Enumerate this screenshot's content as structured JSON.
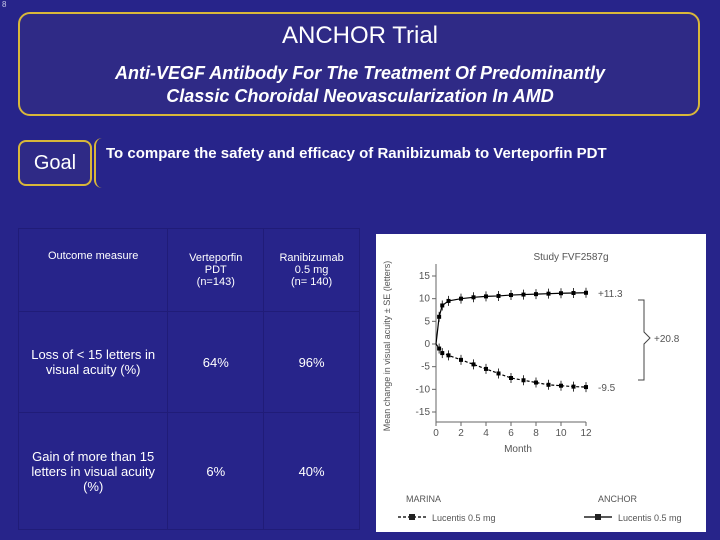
{
  "corner_mark": "8",
  "header": {
    "title": "ANCHOR Trial",
    "subtitle_line1": "Anti-VEGF Antibody For The Treatment Of Predominantly",
    "subtitle_line2": "Classic Choroidal Neovascularization In AMD"
  },
  "goal": {
    "label": "Goal",
    "text": "To compare the safety and efficacy of Ranibizumab to Verteporfin PDT"
  },
  "table": {
    "headers": [
      "Outcome measure",
      [
        "Verteporfin",
        "PDT",
        "(n=143)"
      ],
      [
        "Ranibizumab",
        "0.5 mg",
        "(n= 140)"
      ]
    ],
    "rows": [
      {
        "measure": [
          "Loss of  < 15 letters in",
          "visual acuity (%)"
        ],
        "verteporfin": "64%",
        "ranibizumab": "96%"
      },
      {
        "measure": [
          "Gain of more than 15",
          "letters in visual acuity",
          "(%)"
        ],
        "verteporfin": "6%",
        "ranibizumab": "40%"
      }
    ]
  },
  "chart_data": {
    "type": "line",
    "title": "Study FVF2587g",
    "xlabel": "Month",
    "ylabel": "Mean change in visual acuity ± SE (letters)",
    "xticks": [
      "0",
      "2",
      "4",
      "6",
      "8",
      "10",
      "12"
    ],
    "yticks": [
      "15",
      "10",
      "5",
      "0",
      "-5",
      "-10",
      "-15"
    ],
    "xlim": [
      0,
      12
    ],
    "ylim": [
      -15,
      15
    ],
    "x": [
      0,
      0.25,
      0.5,
      1,
      2,
      3,
      4,
      5,
      6,
      7,
      8,
      9,
      10,
      11,
      12
    ],
    "series": [
      {
        "name": "Lucentis 0.5 mg",
        "color": "#000000",
        "values": [
          0,
          6,
          8.5,
          9.5,
          10,
          10.3,
          10.5,
          10.6,
          10.8,
          10.9,
          11,
          11.1,
          11.2,
          11.25,
          11.3
        ]
      },
      {
        "name": "Lucentis 0.5 mg",
        "color": "#000000",
        "values": [
          0,
          -1,
          -2,
          -2.5,
          -3.5,
          -4.5,
          -5.5,
          -6.5,
          -7.5,
          -8,
          -8.5,
          -9,
          -9.2,
          -9.4,
          -9.5
        ]
      }
    ],
    "end_labels": [
      "+11.3",
      "-9.5"
    ],
    "difference_label": "+20.8",
    "legend_headers": [
      "MARINA",
      "ANCHOR"
    ],
    "legend_labels": [
      "Lucentis 0.5 mg",
      "Lucentis 0.5 mg"
    ],
    "legend_position": "bottom",
    "grid": false
  }
}
